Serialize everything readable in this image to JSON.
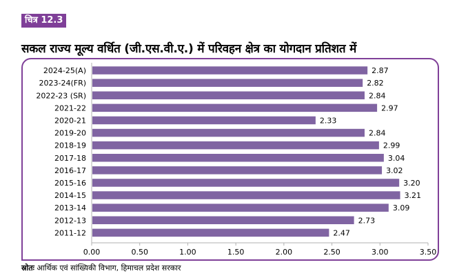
{
  "figure": {
    "badge": "चित्र 12.3",
    "title": "सकल राज्य मूल्य वर्धित (जी.एस.वी.ए.) में परिवहन क्षेत्र का योगदान प्रतिशत में",
    "source_label": "स्रोतः",
    "source_text": "आर्थिक एवं सांख्यिकी विभाग, हिमाचल प्रदेश सरकार",
    "accent_color": "#7f3f98",
    "bar_color": "#8064a2"
  },
  "chart_data": {
    "type": "bar",
    "orientation": "horizontal",
    "categories": [
      "2024-25(A)",
      "2023-24(FR)",
      "2022-23 (SR)",
      "2021-22",
      "2020-21",
      "2019-20",
      "2018-19",
      "2017-18",
      "2016-17",
      "2015-16",
      "2014-15",
      "2013-14",
      "2012-13",
      "2011-12"
    ],
    "values": [
      2.87,
      2.82,
      2.84,
      2.97,
      2.33,
      2.84,
      2.99,
      3.04,
      3.02,
      3.2,
      3.21,
      3.09,
      2.73,
      2.47
    ],
    "value_labels": [
      "2.87",
      "2.82",
      "2.84",
      "2.97",
      "2.33",
      "2.84",
      "2.99",
      "3.04",
      "3.02",
      "3.20",
      "3.21",
      "3.09",
      "2.73",
      "2.47"
    ],
    "xlim": [
      0,
      3.5
    ],
    "xticks": [
      "0.00",
      "0.50",
      "1.00",
      "1.50",
      "2.00",
      "2.50",
      "3.00",
      "3.50"
    ],
    "xlabel": "",
    "ylabel": "",
    "grid": false,
    "legend": "none"
  }
}
